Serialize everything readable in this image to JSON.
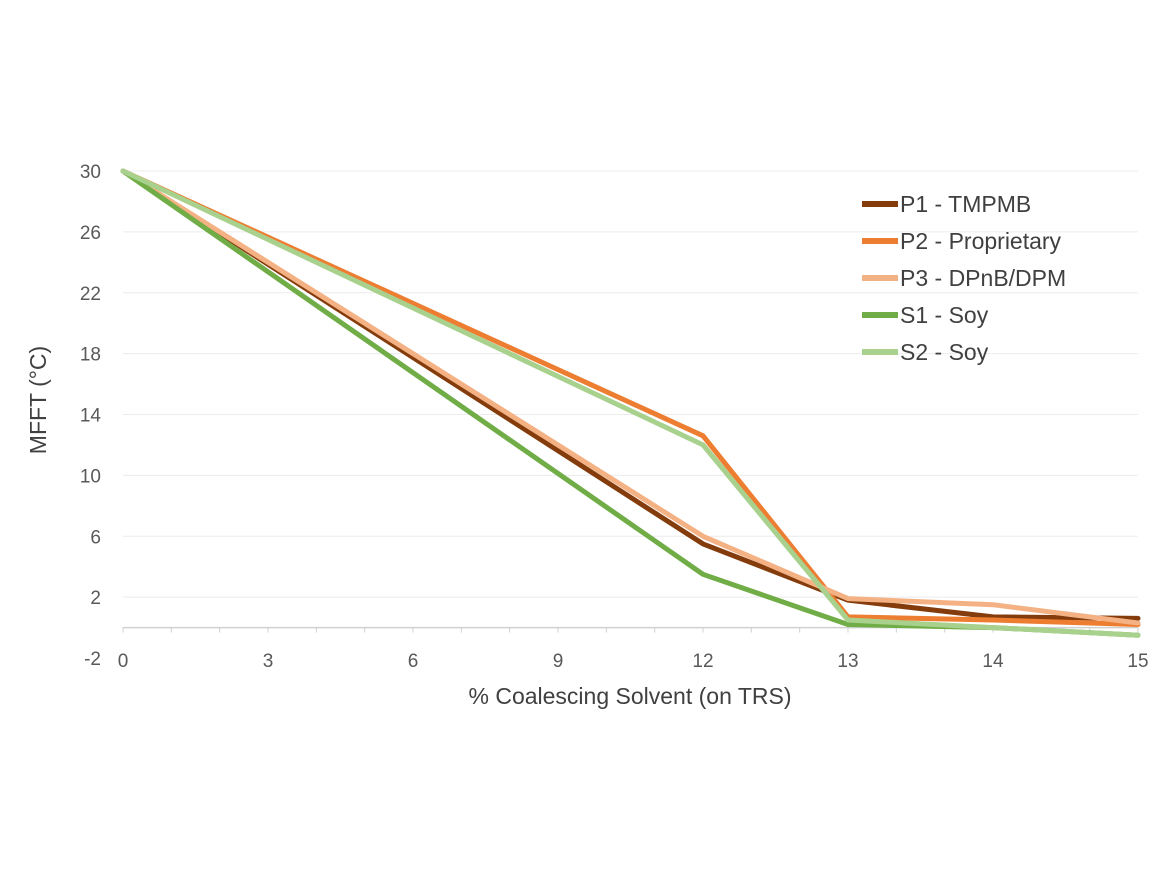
{
  "chart_data": {
    "type": "line",
    "title": "",
    "xlabel": "% Coalescing Solvent (on TRS)",
    "ylabel": "MFFT (°C)",
    "categories": [
      "0",
      "3",
      "6",
      "9",
      "12",
      "13",
      "14",
      "15"
    ],
    "x_positions": [
      0,
      3,
      6,
      9,
      12,
      15,
      18,
      21
    ],
    "y_ticks": [
      -2,
      2,
      6,
      10,
      14,
      18,
      22,
      26,
      30
    ],
    "ylim": [
      -2,
      30
    ],
    "grid": true,
    "legend_position": "top-right",
    "series": [
      {
        "name": "P1 - TMPMB",
        "color": "#843C0C",
        "x": [
          0,
          12,
          13,
          14,
          15
        ],
        "y": [
          30,
          5.5,
          1.8,
          0.7,
          0.6
        ]
      },
      {
        "name": "P2 - Proprietary",
        "color": "#ED7D31",
        "x": [
          0,
          12,
          13,
          14,
          15
        ],
        "y": [
          30,
          12.6,
          0.7,
          0.5,
          0.2
        ]
      },
      {
        "name": "P3 - DPnB/DPM",
        "color": "#F4B183",
        "x": [
          0,
          12,
          13,
          14,
          15
        ],
        "y": [
          30,
          6,
          1.9,
          1.5,
          0.3
        ]
      },
      {
        "name": "S1 - Soy",
        "color": "#70AD47",
        "x": [
          0,
          12,
          13,
          14,
          15
        ],
        "y": [
          30,
          3.5,
          0.2,
          0,
          -0.5
        ]
      },
      {
        "name": "S2 - Soy",
        "color": "#A9D18E",
        "x": [
          0,
          12,
          13,
          14,
          15
        ],
        "y": [
          30,
          12,
          0.5,
          0,
          -0.5
        ]
      }
    ]
  }
}
